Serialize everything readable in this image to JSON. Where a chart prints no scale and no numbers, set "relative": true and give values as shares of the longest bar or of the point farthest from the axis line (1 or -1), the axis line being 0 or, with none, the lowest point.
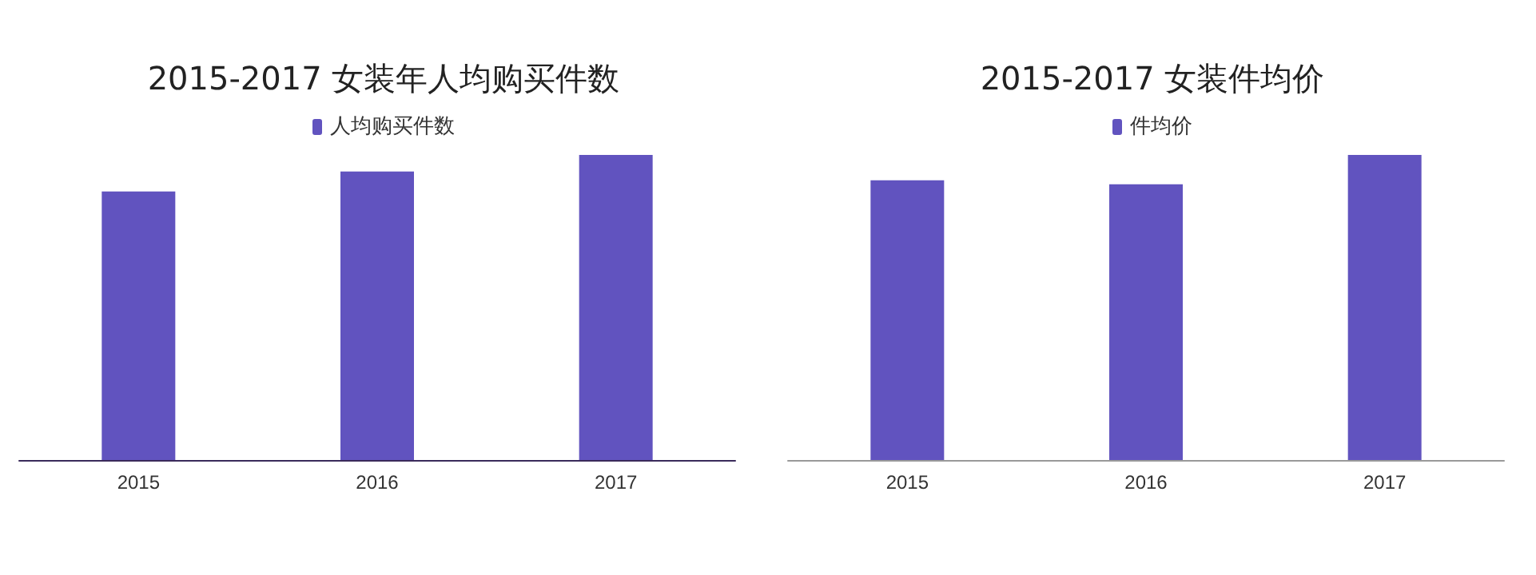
{
  "chart_data": [
    {
      "type": "bar",
      "title": "2015-2017 女装年人均购买件数",
      "categories": [
        "2015",
        "2016",
        "2017"
      ],
      "relative": true,
      "legend": "top",
      "series": [
        {
          "name": "人均购买件数",
          "color": "#6153bf",
          "values": [
            0.88,
            0.946,
            1
          ]
        }
      ]
    },
    {
      "type": "bar",
      "title": "2015-2017 女装件均价",
      "categories": [
        "2015",
        "2016",
        "2017"
      ],
      "relative": true,
      "legend": "top",
      "series": [
        {
          "name": "件均价",
          "color": "#6153bf",
          "values": [
            0.917,
            0.904,
            1
          ]
        }
      ]
    }
  ]
}
